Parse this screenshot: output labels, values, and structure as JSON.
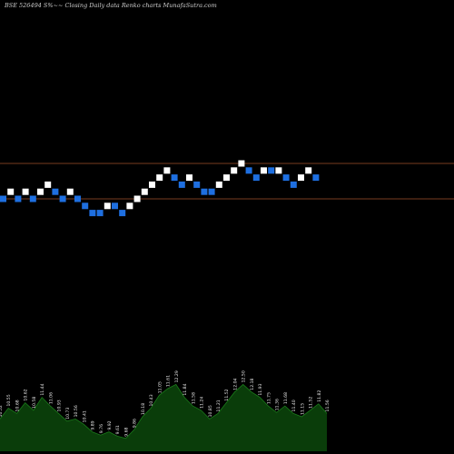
{
  "chart_data": {
    "type": "renko",
    "title": "BSE 526494  S%~~ Closing Daily data  Renko  charts MunafaSutra.com",
    "xlabel": "",
    "ylabel": "",
    "grid": false,
    "legend": "none",
    "colors": {
      "background": "#000000",
      "up_brick": "#ffffff",
      "down_brick": "#1e6fe0",
      "level_line": "#a0522d",
      "volume_area": "#0a3d0a",
      "volume_edge": "#1a7a1a"
    },
    "levels": [
      5,
      0
    ],
    "bricks": [
      {
        "level": 0,
        "dir": "down"
      },
      {
        "level": 1,
        "dir": "up"
      },
      {
        "level": 0,
        "dir": "down"
      },
      {
        "level": 1,
        "dir": "up"
      },
      {
        "level": 0,
        "dir": "down"
      },
      {
        "level": 1,
        "dir": "up"
      },
      {
        "level": 2,
        "dir": "up"
      },
      {
        "level": 1,
        "dir": "down"
      },
      {
        "level": 0,
        "dir": "down"
      },
      {
        "level": 1,
        "dir": "up"
      },
      {
        "level": 0,
        "dir": "down"
      },
      {
        "level": -1,
        "dir": "down"
      },
      {
        "level": -2,
        "dir": "down"
      },
      {
        "level": -2,
        "dir": "down"
      },
      {
        "level": -1,
        "dir": "up"
      },
      {
        "level": -1,
        "dir": "down"
      },
      {
        "level": -2,
        "dir": "down"
      },
      {
        "level": -1,
        "dir": "up"
      },
      {
        "level": 0,
        "dir": "up"
      },
      {
        "level": 1,
        "dir": "up"
      },
      {
        "level": 2,
        "dir": "up"
      },
      {
        "level": 3,
        "dir": "up"
      },
      {
        "level": 4,
        "dir": "up"
      },
      {
        "level": 3,
        "dir": "down"
      },
      {
        "level": 2,
        "dir": "down"
      },
      {
        "level": 3,
        "dir": "up"
      },
      {
        "level": 2,
        "dir": "down"
      },
      {
        "level": 1,
        "dir": "down"
      },
      {
        "level": 1,
        "dir": "down"
      },
      {
        "level": 2,
        "dir": "up"
      },
      {
        "level": 3,
        "dir": "up"
      },
      {
        "level": 4,
        "dir": "up"
      },
      {
        "level": 5,
        "dir": "up"
      },
      {
        "level": 4,
        "dir": "down"
      },
      {
        "level": 3,
        "dir": "down"
      },
      {
        "level": 4,
        "dir": "up"
      },
      {
        "level": 4,
        "dir": "down"
      },
      {
        "level": 4,
        "dir": "up"
      },
      {
        "level": 3,
        "dir": "down"
      },
      {
        "level": 2,
        "dir": "down"
      },
      {
        "level": 3,
        "dir": "up"
      },
      {
        "level": 4,
        "dir": "up"
      },
      {
        "level": 3,
        "dir": "down"
      }
    ],
    "volume": [
      {
        "label": "10.52",
        "value": 30
      },
      {
        "label": "10.55",
        "value": 40
      },
      {
        "label": "10.68",
        "value": 35
      },
      {
        "label": "10.62",
        "value": 45
      },
      {
        "label": "10.58",
        "value": 38
      },
      {
        "label": "11.44",
        "value": 50
      },
      {
        "label": "11.06",
        "value": 42
      },
      {
        "label": "10.93",
        "value": 35
      },
      {
        "label": "10.73",
        "value": 28
      },
      {
        "label": "10.56",
        "value": 30
      },
      {
        "label": "10.41",
        "value": 25
      },
      {
        "label": "9.89",
        "value": 18
      },
      {
        "label": "9.76",
        "value": 15
      },
      {
        "label": "9.92",
        "value": 18
      },
      {
        "label": "9.61",
        "value": 14
      },
      {
        "label": "9.68",
        "value": 12
      },
      {
        "label": "9.86",
        "value": 20
      },
      {
        "label": "10.18",
        "value": 32
      },
      {
        "label": "10.43",
        "value": 40
      },
      {
        "label": "11.05",
        "value": 52
      },
      {
        "label": "11.61",
        "value": 58
      },
      {
        "label": "12.29",
        "value": 62
      },
      {
        "label": "11.84",
        "value": 50
      },
      {
        "label": "11.58",
        "value": 42
      },
      {
        "label": "11.24",
        "value": 38
      },
      {
        "label": "10.85",
        "value": 30
      },
      {
        "label": "11.21",
        "value": 35
      },
      {
        "label": "11.52",
        "value": 45
      },
      {
        "label": "12.04",
        "value": 55
      },
      {
        "label": "12.50",
        "value": 62
      },
      {
        "label": "12.18",
        "value": 55
      },
      {
        "label": "11.93",
        "value": 50
      },
      {
        "label": "11.75",
        "value": 42
      },
      {
        "label": "11.36",
        "value": 36
      },
      {
        "label": "11.68",
        "value": 42
      },
      {
        "label": "11.40",
        "value": 35
      },
      {
        "label": "11.15",
        "value": 32
      },
      {
        "label": "11.52",
        "value": 38
      },
      {
        "label": "11.82",
        "value": 44
      },
      {
        "label": "11.56",
        "value": 35
      }
    ]
  }
}
